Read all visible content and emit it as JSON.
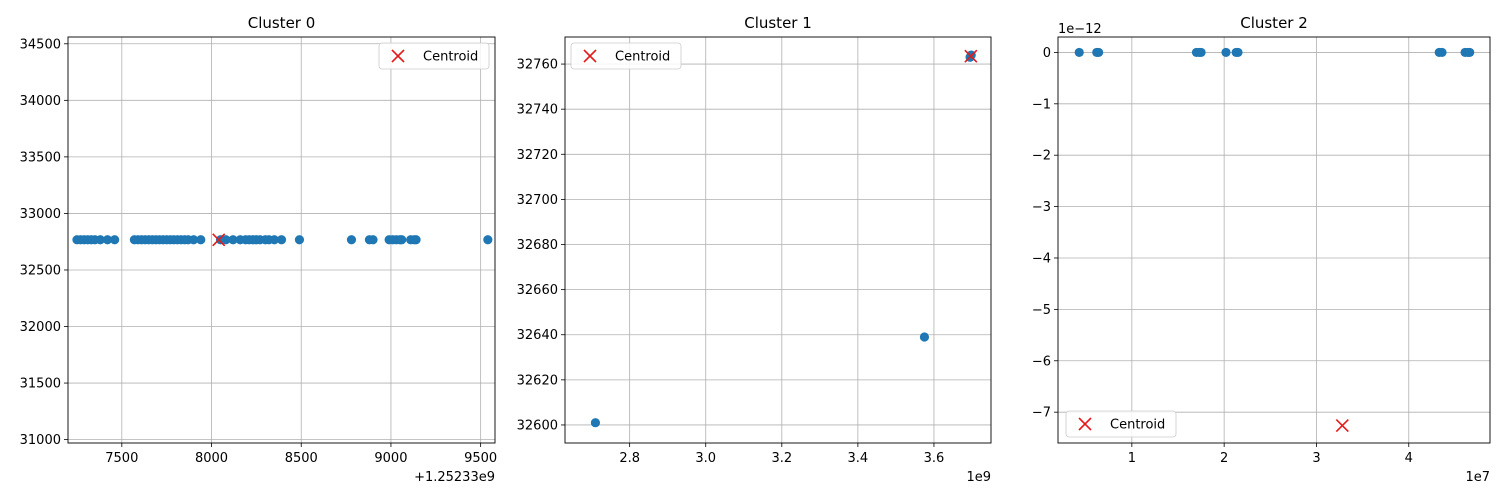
{
  "chart_data": [
    {
      "type": "scatter",
      "title": "Cluster 0",
      "xlabel": "",
      "ylabel": "",
      "xlim": [
        7200,
        9580
      ],
      "ylim": [
        30970,
        34560
      ],
      "xticks": [
        7500,
        8000,
        8500,
        9000,
        9500
      ],
      "yticks": [
        31000,
        31500,
        32000,
        32500,
        33000,
        33500,
        34000,
        34500
      ],
      "x_offset_label": "+1.25233e9",
      "y_offset_label": "",
      "grid": true,
      "legend": {
        "label": "Centroid",
        "placement": "upper right"
      },
      "point_color": "#1f77b4",
      "centroid_color": "#e41a1c",
      "series": [
        {
          "name": "",
          "points": [
            [
              7250,
              32767
            ],
            [
              7270,
              32767
            ],
            [
              7290,
              32767
            ],
            [
              7310,
              32767
            ],
            [
              7330,
              32767
            ],
            [
              7350,
              32767
            ],
            [
              7380,
              32767
            ],
            [
              7420,
              32767
            ],
            [
              7460,
              32767
            ],
            [
              7570,
              32767
            ],
            [
              7590,
              32767
            ],
            [
              7610,
              32767
            ],
            [
              7630,
              32767
            ],
            [
              7650,
              32767
            ],
            [
              7670,
              32767
            ],
            [
              7690,
              32767
            ],
            [
              7710,
              32767
            ],
            [
              7730,
              32767
            ],
            [
              7750,
              32767
            ],
            [
              7770,
              32767
            ],
            [
              7790,
              32767
            ],
            [
              7810,
              32767
            ],
            [
              7830,
              32767
            ],
            [
              7850,
              32767
            ],
            [
              7870,
              32767
            ],
            [
              7900,
              32767
            ],
            [
              7940,
              32767
            ],
            [
              8050,
              32767
            ],
            [
              8080,
              32767
            ],
            [
              8120,
              32767
            ],
            [
              8160,
              32767
            ],
            [
              8190,
              32767
            ],
            [
              8210,
              32767
            ],
            [
              8230,
              32767
            ],
            [
              8250,
              32767
            ],
            [
              8270,
              32767
            ],
            [
              8300,
              32767
            ],
            [
              8320,
              32767
            ],
            [
              8350,
              32767
            ],
            [
              8390,
              32767
            ],
            [
              8490,
              32767
            ],
            [
              8780,
              32767
            ],
            [
              8880,
              32767
            ],
            [
              8900,
              32767
            ],
            [
              8990,
              32767
            ],
            [
              9010,
              32767
            ],
            [
              9030,
              32767
            ],
            [
              9050,
              32767
            ],
            [
              9060,
              32767
            ],
            [
              9110,
              32767
            ],
            [
              9130,
              32767
            ],
            [
              9140,
              32767
            ],
            [
              9540,
              32767
            ]
          ]
        }
      ],
      "centroid": [
        8040,
        32767
      ]
    },
    {
      "type": "scatter",
      "title": "Cluster 1",
      "xlabel": "",
      "ylabel": "",
      "xlim": [
        2.63,
        3.75
      ],
      "ylim": [
        32592,
        32772
      ],
      "xticks": [
        2.8,
        3.0,
        3.2,
        3.4,
        3.6
      ],
      "yticks": [
        32600,
        32620,
        32640,
        32660,
        32680,
        32700,
        32720,
        32740,
        32760
      ],
      "x_offset_label": "1e9",
      "y_offset_label": "",
      "grid": true,
      "legend": {
        "label": "Centroid",
        "placement": "upper left"
      },
      "point_color": "#1f77b4",
      "centroid_color": "#e41a1c",
      "series": [
        {
          "name": "",
          "points": [
            [
              2.71,
              32601
            ],
            [
              3.575,
              32639
            ],
            [
              3.695,
              32763
            ],
            [
              3.698,
              32764
            ]
          ]
        }
      ],
      "centroid": [
        3.697,
        32763.5
      ]
    },
    {
      "type": "scatter",
      "title": "Cluster 2",
      "xlabel": "",
      "ylabel": "",
      "xlim": [
        0.2,
        4.88
      ],
      "ylim": [
        -7.6,
        0.3
      ],
      "xticks": [
        1,
        2,
        3,
        4
      ],
      "yticks": [
        -7,
        -6,
        -5,
        -4,
        -3,
        -2,
        -1,
        0
      ],
      "x_offset_label": "1e7",
      "y_offset_label": "1e−12",
      "grid": true,
      "legend": {
        "label": "Centroid",
        "placement": "lower left"
      },
      "point_color": "#1f77b4",
      "centroid_color": "#e41a1c",
      "series": [
        {
          "name": "",
          "points": [
            [
              0.43,
              0
            ],
            [
              0.62,
              0
            ],
            [
              0.64,
              0
            ],
            [
              1.7,
              0
            ],
            [
              1.73,
              0
            ],
            [
              1.75,
              0
            ],
            [
              2.02,
              0
            ],
            [
              2.13,
              0
            ],
            [
              2.15,
              0
            ],
            [
              4.33,
              0
            ],
            [
              4.36,
              0
            ],
            [
              4.61,
              0
            ],
            [
              4.64,
              0
            ],
            [
              4.66,
              0
            ]
          ]
        }
      ],
      "centroid": [
        3.28,
        -7.26
      ]
    }
  ]
}
